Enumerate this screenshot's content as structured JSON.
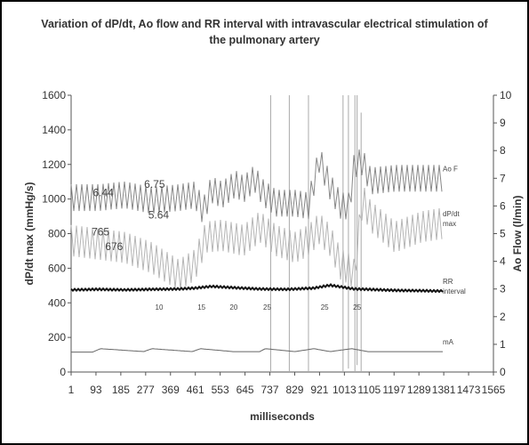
{
  "chart_data": {
    "type": "line",
    "title": "Variation of dP/dt, Ao flow and RR interval with intravascular electrical stimulation of the pulmonary artery",
    "xlabel": "milliseconds",
    "ylabel": "dP/dt max (mmHg/s)",
    "ylabel_right": "Ao Flow (l/min)",
    "xlim": [
      1,
      1565
    ],
    "ylim": [
      0,
      1600
    ],
    "ylim_right": [
      0,
      10
    ],
    "x_ticks": [
      "1",
      "93",
      "185",
      "277",
      "369",
      "461",
      "553",
      "645",
      "737",
      "829",
      "921",
      "1013",
      "1105",
      "1197",
      "1289",
      "1381",
      "1473",
      "1565"
    ],
    "y_ticks": [
      "0",
      "200",
      "400",
      "600",
      "800",
      "1000",
      "1200",
      "1400",
      "1600"
    ],
    "y_right_ticks": [
      "0",
      "1",
      "2",
      "3",
      "4",
      "5",
      "6",
      "7",
      "8",
      "9",
      "10"
    ],
    "grid": false,
    "legend_position": "right",
    "series": [
      {
        "name": "Ao F",
        "axis": "right",
        "label_lines": [
          "Ao F"
        ],
        "x": [
          1,
          100,
          200,
          300,
          400,
          460,
          490,
          520,
          560,
          610,
          640,
          680,
          710,
          760,
          830,
          880,
          920,
          960,
          1000,
          1030,
          1050,
          1080,
          1110,
          1200,
          1300,
          1381
        ],
        "values": [
          6.3,
          6.3,
          6.4,
          6.2,
          6.3,
          6.4,
          5.8,
          6.6,
          6.4,
          6.8,
          6.6,
          7.0,
          6.5,
          6.1,
          6.1,
          6.0,
          7.7,
          6.7,
          6.0,
          6.0,
          7.5,
          7.6,
          6.9,
          7.0,
          7.0,
          7.0
        ]
      },
      {
        "name": "dP/dt max",
        "axis": "left",
        "label_lines": [
          "dP/dt",
          "max"
        ],
        "x": [
          1,
          100,
          200,
          300,
          400,
          460,
          500,
          560,
          640,
          700,
          760,
          830,
          880,
          920,
          960,
          1000,
          1030,
          1050,
          1080,
          1110,
          1200,
          1300,
          1381
        ],
        "values": [
          760,
          740,
          720,
          660,
          560,
          620,
          780,
          790,
          760,
          840,
          760,
          720,
          760,
          830,
          760,
          620,
          600,
          560,
          1000,
          900,
          780,
          840,
          860
        ]
      },
      {
        "name": "RR interval",
        "axis": "left",
        "label_lines": [
          "RR",
          "interval"
        ],
        "x": [
          1,
          100,
          200,
          300,
          400,
          460,
          520,
          600,
          700,
          800,
          900,
          960,
          1050,
          1100,
          1200,
          1300,
          1381
        ],
        "values": [
          475,
          478,
          475,
          478,
          480,
          485,
          495,
          488,
          480,
          478,
          485,
          502,
          480,
          478,
          472,
          470,
          468
        ]
      },
      {
        "name": "mA",
        "axis": "left",
        "label_lines": [
          "mA"
        ],
        "x": [
          1,
          80,
          110,
          270,
          300,
          450,
          480,
          600,
          700,
          720,
          830,
          900,
          960,
          1040,
          1100,
          1200,
          1381
        ],
        "values": [
          115,
          115,
          135,
          118,
          135,
          118,
          135,
          118,
          118,
          135,
          118,
          135,
          118,
          135,
          118,
          118,
          118
        ]
      }
    ],
    "annotations": [
      {
        "text": "6.44",
        "x": 120,
        "y_right": 6.35
      },
      {
        "text": "6.75",
        "x": 310,
        "y_right": 6.65
      },
      {
        "text": "5.64",
        "x": 325,
        "y_right": 5.55
      },
      {
        "text": "765",
        "x": 110,
        "y": 790
      },
      {
        "text": "676",
        "x": 160,
        "y": 705
      },
      {
        "text": "10",
        "x": 327,
        "y": 360
      },
      {
        "text": "15",
        "x": 484,
        "y": 360
      },
      {
        "text": "20",
        "x": 603,
        "y": 360
      },
      {
        "text": "25",
        "x": 727,
        "y": 360
      },
      {
        "text": "25",
        "x": 940,
        "y": 360
      },
      {
        "text": "25",
        "x": 1060,
        "y": 360
      }
    ]
  }
}
